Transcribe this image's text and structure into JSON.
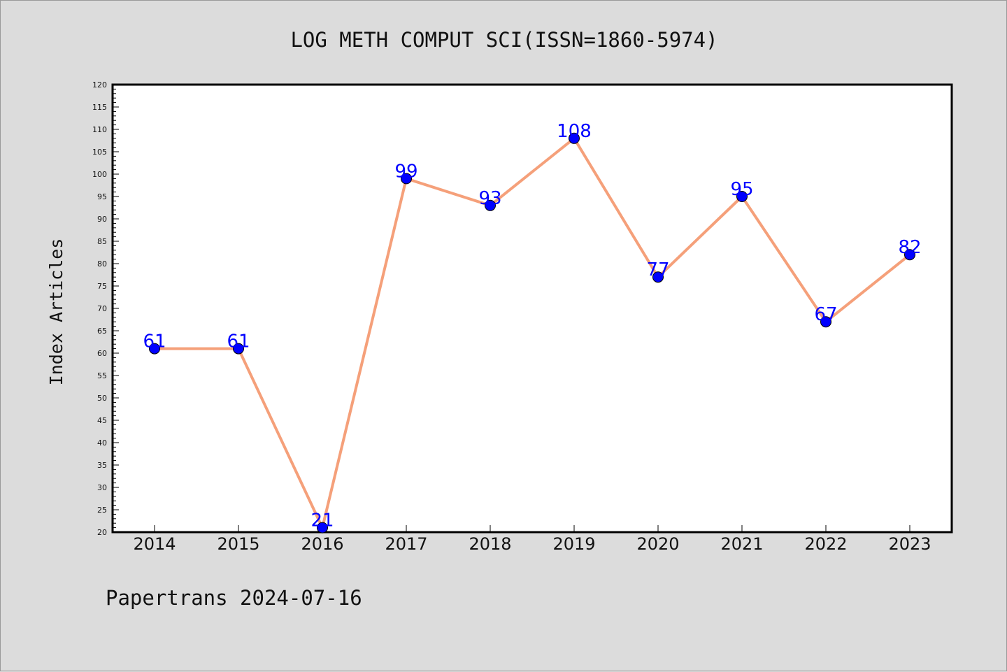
{
  "chart_data": {
    "type": "line",
    "title": "LOG METH COMPUT SCI(ISSN=1860-5974)",
    "ylabel": "Index Articles",
    "xlabel": "",
    "footer": "Papertrans 2024-07-16",
    "categories": [
      "2014",
      "2015",
      "2016",
      "2017",
      "2018",
      "2019",
      "2020",
      "2021",
      "2022",
      "2023"
    ],
    "series": [
      {
        "values": [
          61,
          61,
          21,
          99,
          93,
          108,
          77,
          95,
          67,
          82
        ]
      }
    ],
    "ylim": [
      20,
      120
    ],
    "ytick_step": 5,
    "grid": false,
    "colors": {
      "line": "#f5a07a",
      "marker": "#0000ff",
      "data_label": "#0000ff",
      "plot_background": "#ffffff",
      "figure_background": "#dcdcdc"
    }
  }
}
